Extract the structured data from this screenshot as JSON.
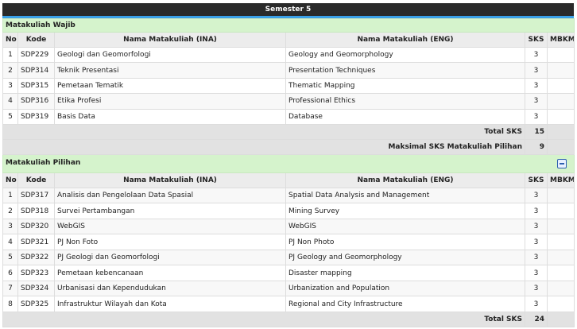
{
  "header": {
    "title": "Semester 5"
  },
  "wajib": {
    "title": "Matakuliah Wajib",
    "columns": [
      "No",
      "Kode",
      "Nama Matakuliah (INA)",
      "Nama Matakuliah (ENG)",
      "SKS",
      "MBKM"
    ],
    "rows": [
      [
        1,
        "SDP229",
        "Geologi dan Geomorfologi",
        "Geology and Geomorphology",
        3
      ],
      [
        2,
        "SDP314",
        "Teknik Presentasi",
        "Presentation Techniques",
        3
      ],
      [
        3,
        "SDP315",
        "Pemetaan Tematik",
        "Thematic Mapping",
        3
      ],
      [
        4,
        "SDP316",
        "Etika Profesi",
        "Professional Ethics",
        3
      ],
      [
        5,
        "SDP319",
        "Basis Data",
        "Database",
        3
      ]
    ],
    "total_label": "Total SKS",
    "total": 15,
    "max_label": "Maksimal SKS Matakuliah Pilihan",
    "max": 9
  },
  "pilihan": {
    "title": "Matakuliah Pilihan",
    "columns": [
      "No",
      "Kode",
      "Nama Matakuliah (INA)",
      "Nama Matakuliah (ENG)",
      "SKS",
      "MBKM"
    ],
    "rows": [
      [
        1,
        "SDP317",
        "Analisis dan Pengelolaan Data Spasial",
        "Spatial Data Analysis and Management",
        3
      ],
      [
        2,
        "SDP318",
        "Survei Pertambangan",
        "Mining Survey",
        3
      ],
      [
        3,
        "SDP320",
        "WebGIS",
        "WebGIS",
        3
      ],
      [
        4,
        "SDP321",
        "PJ Non Foto",
        "PJ Non Photo",
        3
      ],
      [
        5,
        "SDP322",
        "PJ Geologi dan Geomorfologi",
        "PJ Geology and Geomorphology",
        3
      ],
      [
        6,
        "SDP323",
        "Pemetaan kebencanaan",
        "Disaster mapping",
        3
      ],
      [
        7,
        "SDP324",
        "Urbanisasi dan Kependudukan",
        "Urbanization and Population",
        3
      ],
      [
        8,
        "SDP325",
        "Infrastruktur Wilayah dan Kota",
        "Regional and City Infrastructure",
        3
      ]
    ],
    "total_label": "Total SKS",
    "total": 24
  }
}
